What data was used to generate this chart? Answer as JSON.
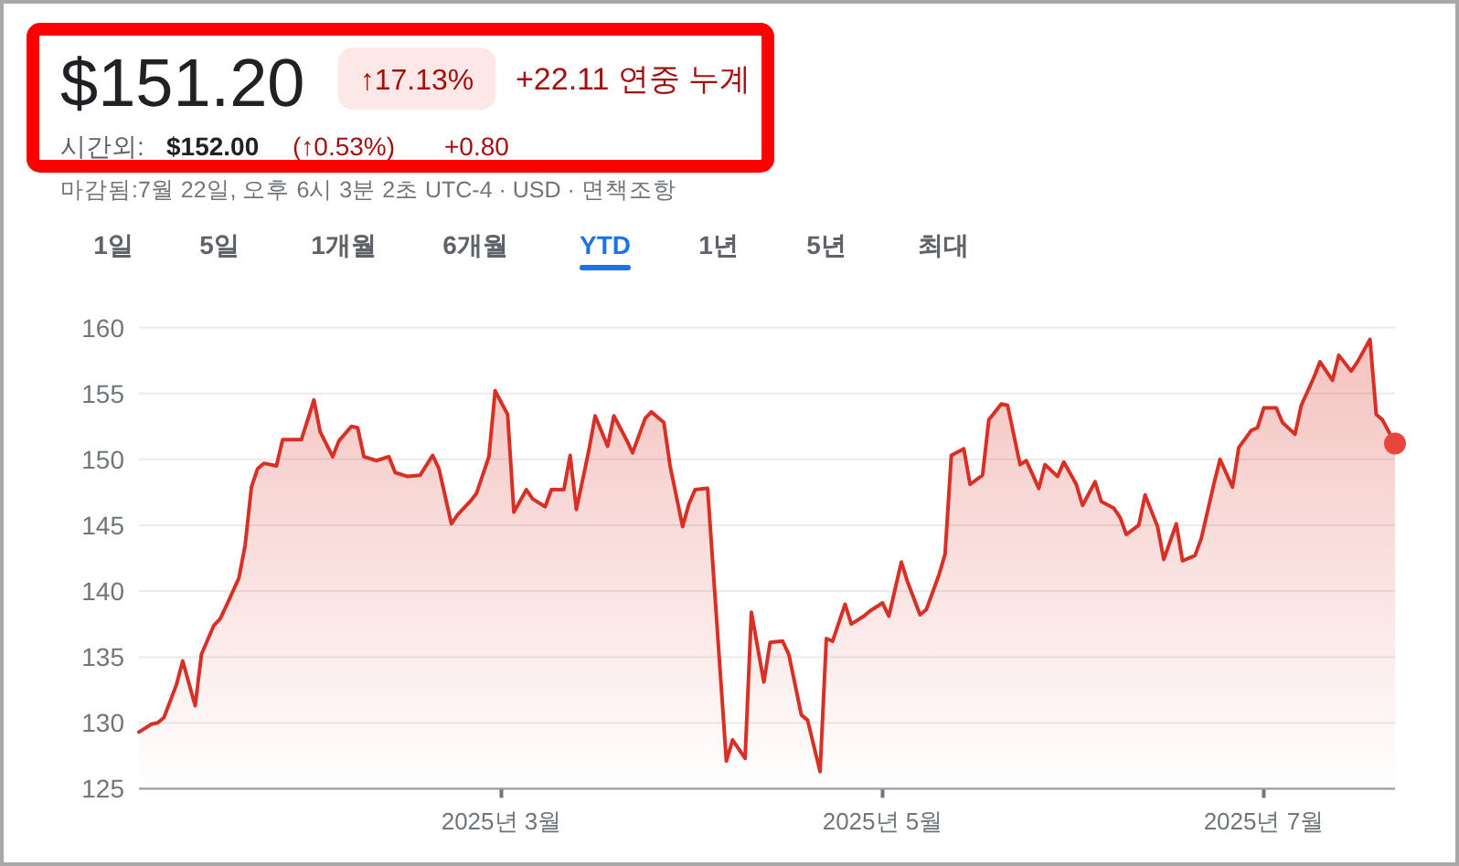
{
  "chart_data": {
    "type": "area",
    "title": "$151.20",
    "subtitle": "마감됨:7월 22일, 오후 6시 3분 2초 UTC-4 · USD · 면책조항",
    "annotations": [
      "↑17.13%",
      "+22.11 연중 누계",
      "시간외:",
      "$152.00",
      "(↑0.53%)",
      "+0.80",
      "1일",
      "5일",
      "1개월",
      "6개월",
      "YTD",
      "1년",
      "5년",
      "최대"
    ],
    "series": [
      {
        "color": "#d93025",
        "x": [
          "2025-01-02",
          "2025-01-04",
          "2025-01-05",
          "2025-01-06",
          "2025-01-08",
          "2025-01-09",
          "2025-01-11",
          "2025-01-12",
          "2025-01-14",
          "2025-01-15",
          "2025-01-16",
          "2025-01-18",
          "2025-01-19",
          "2025-01-20",
          "2025-01-21",
          "2025-01-22",
          "2025-01-24",
          "2025-01-25",
          "2025-01-27",
          "2025-01-28",
          "2025-01-30",
          "2025-01-31",
          "2025-02-02",
          "2025-02-03",
          "2025-02-05",
          "2025-02-06",
          "2025-02-07",
          "2025-02-09",
          "2025-02-11",
          "2025-02-12",
          "2025-02-14",
          "2025-02-16",
          "2025-02-18",
          "2025-02-19",
          "2025-02-21",
          "2025-02-22",
          "2025-02-24",
          "2025-02-25",
          "2025-02-27",
          "2025-02-28",
          "2025-03-02",
          "2025-03-03",
          "2025-03-05",
          "2025-03-06",
          "2025-03-08",
          "2025-03-09",
          "2025-03-11",
          "2025-03-12",
          "2025-03-13",
          "2025-03-15",
          "2025-03-16",
          "2025-03-18",
          "2025-03-19",
          "2025-03-21",
          "2025-03-22",
          "2025-03-24",
          "2025-03-25",
          "2025-03-27",
          "2025-03-28",
          "2025-03-30",
          "2025-03-31",
          "2025-04-01",
          "2025-04-03",
          "2025-04-06",
          "2025-04-07",
          "2025-04-09",
          "2025-04-10",
          "2025-04-12",
          "2025-04-13",
          "2025-04-15",
          "2025-04-16",
          "2025-04-18",
          "2025-04-19",
          "2025-04-21",
          "2025-04-22",
          "2025-04-23",
          "2025-04-25",
          "2025-04-26",
          "2025-04-28",
          "2025-04-29",
          "2025-05-01",
          "2025-05-02",
          "2025-05-04",
          "2025-05-05",
          "2025-05-07",
          "2025-05-08",
          "2025-05-10",
          "2025-05-11",
          "2025-05-12",
          "2025-05-14",
          "2025-05-15",
          "2025-05-17",
          "2025-05-18",
          "2025-05-20",
          "2025-05-21",
          "2025-05-23",
          "2025-05-24",
          "2025-05-26",
          "2025-05-27",
          "2025-05-29",
          "2025-05-30",
          "2025-06-01",
          "2025-06-02",
          "2025-06-04",
          "2025-06-05",
          "2025-06-07",
          "2025-06-08",
          "2025-06-09",
          "2025-06-11",
          "2025-06-12",
          "2025-06-14",
          "2025-06-15",
          "2025-06-17",
          "2025-06-18",
          "2025-06-20",
          "2025-06-21",
          "2025-06-23",
          "2025-06-24",
          "2025-06-26",
          "2025-06-27",
          "2025-06-29",
          "2025-06-30",
          "2025-07-01",
          "2025-07-03",
          "2025-07-04",
          "2025-07-06",
          "2025-07-07",
          "2025-07-09",
          "2025-07-10",
          "2025-07-12",
          "2025-07-13",
          "2025-07-15",
          "2025-07-16",
          "2025-07-18",
          "2025-07-19",
          "2025-07-20",
          "2025-07-22"
        ],
        "values": [
          129.3,
          129.9,
          130.0,
          130.4,
          132.9,
          134.7,
          131.3,
          135.2,
          137.4,
          137.9,
          138.9,
          141.0,
          143.5,
          147.9,
          149.3,
          149.7,
          149.5,
          151.5,
          151.5,
          151.5,
          154.5,
          152.1,
          150.2,
          151.4,
          152.5,
          152.4,
          150.2,
          149.9,
          150.2,
          149.0,
          148.7,
          148.8,
          150.3,
          149.3,
          145.1,
          145.8,
          146.8,
          147.4,
          150.2,
          155.2,
          153.4,
          146.0,
          147.7,
          147.0,
          146.4,
          147.7,
          147.7,
          150.3,
          146.2,
          150.7,
          153.3,
          151.0,
          153.3,
          151.5,
          150.5,
          153.1,
          153.6,
          152.8,
          149.5,
          144.9,
          146.6,
          147.7,
          147.8,
          127.1,
          128.7,
          127.3,
          138.4,
          133.1,
          136.1,
          136.2,
          135.2,
          130.6,
          130.2,
          126.3,
          136.4,
          136.2,
          139.0,
          137.5,
          138.1,
          138.5,
          139.1,
          138.1,
          142.2,
          140.7,
          138.2,
          138.6,
          141.2,
          142.8,
          150.3,
          150.8,
          148.1,
          148.8,
          153.0,
          154.2,
          154.1,
          149.6,
          149.9,
          147.8,
          149.6,
          148.7,
          149.8,
          148.1,
          146.5,
          148.3,
          146.8,
          146.3,
          145.6,
          144.3,
          145.0,
          147.3,
          144.9,
          142.4,
          145.1,
          142.3,
          142.7,
          144.0,
          148.1,
          150.0,
          147.9,
          150.9,
          152.2,
          152.4,
          153.9,
          153.9,
          152.8,
          151.9,
          154.1,
          156.2,
          157.4,
          156.0,
          157.9,
          156.7,
          157.4,
          159.1,
          153.4,
          153.0,
          151.2
        ]
      },
      {
        "type": "scatter",
        "color": "#e8453c",
        "marker": "circle",
        "x": [
          "2025-07-22"
        ],
        "values": [
          151.2
        ]
      }
    ],
    "xlim": [
      "2025-01-02",
      "2025-07-22"
    ],
    "xticks": [
      {
        "value": "2025-03-01",
        "label": "2025년 3월"
      },
      {
        "value": "2025-05-01",
        "label": "2025년 5월"
      },
      {
        "value": "2025-07-01",
        "label": "2025년 7월"
      }
    ],
    "ylim": [
      125,
      160
    ],
    "yticks": [
      125,
      130,
      135,
      140,
      145,
      150,
      155,
      160
    ],
    "grid": "y"
  }
}
